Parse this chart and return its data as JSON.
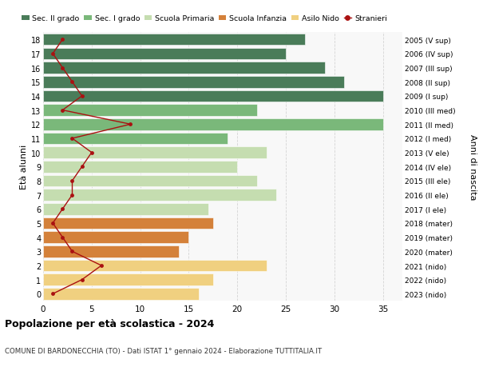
{
  "ages": [
    18,
    17,
    16,
    15,
    14,
    13,
    12,
    11,
    10,
    9,
    8,
    7,
    6,
    5,
    4,
    3,
    2,
    1,
    0
  ],
  "right_labels": [
    "2005 (V sup)",
    "2006 (IV sup)",
    "2007 (III sup)",
    "2008 (II sup)",
    "2009 (I sup)",
    "2010 (III med)",
    "2011 (II med)",
    "2012 (I med)",
    "2013 (V ele)",
    "2014 (IV ele)",
    "2015 (III ele)",
    "2016 (II ele)",
    "2017 (I ele)",
    "2018 (mater)",
    "2019 (mater)",
    "2020 (mater)",
    "2021 (nido)",
    "2022 (nido)",
    "2023 (nido)"
  ],
  "bar_values": [
    27,
    25,
    29,
    31,
    35,
    22,
    35,
    19,
    23,
    20,
    22,
    24,
    17,
    17.5,
    15,
    14,
    23,
    17.5,
    16
  ],
  "bar_colors": [
    "#4a7c59",
    "#4a7c59",
    "#4a7c59",
    "#4a7c59",
    "#4a7c59",
    "#7ab87a",
    "#7ab87a",
    "#7ab87a",
    "#c5ddb0",
    "#c5ddb0",
    "#c5ddb0",
    "#c5ddb0",
    "#c5ddb0",
    "#d4813a",
    "#d4813a",
    "#d4813a",
    "#f0d080",
    "#f0d080",
    "#f0d080"
  ],
  "stranieri_values": [
    2,
    1,
    2,
    3,
    4,
    2,
    9,
    3,
    5,
    4,
    3,
    3,
    2,
    1,
    2,
    3,
    6,
    4,
    1
  ],
  "legend_labels": [
    "Sec. II grado",
    "Sec. I grado",
    "Scuola Primaria",
    "Scuola Infanzia",
    "Asilo Nido",
    "Stranieri"
  ],
  "legend_colors": [
    "#4a7c59",
    "#7ab87a",
    "#c5ddb0",
    "#d4813a",
    "#f0d080",
    "#aa1111"
  ],
  "title": "Popolazione per età scolastica - 2024",
  "subtitle": "COMUNE DI BARDONECCHIA (TO) - Dati ISTAT 1° gennaio 2024 - Elaborazione TUTTITALIA.IT",
  "ylabel_left": "Età alunni",
  "ylabel_right": "Anni di nascita",
  "xlim": [
    0,
    37
  ],
  "bg_color": "#ffffff"
}
